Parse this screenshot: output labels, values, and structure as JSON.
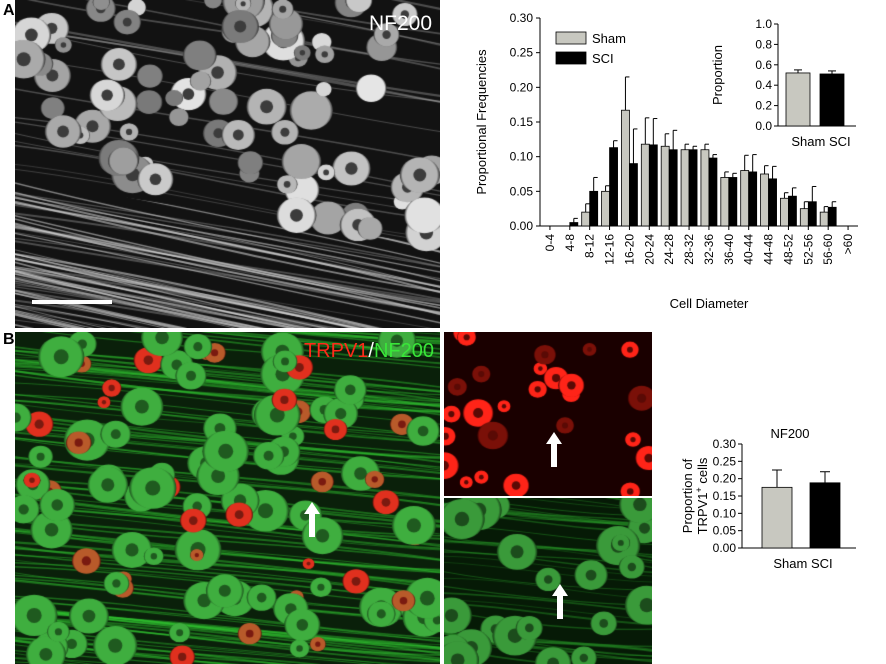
{
  "figure": {
    "panel_a_letter": "A",
    "panel_b_letter": "B",
    "micrograph_a_label": "NF200",
    "micrograph_b_label_trpv1": "TRPV1",
    "micrograph_b_label_slash": "/",
    "micrograph_b_label_nf200": "NF200",
    "colors": {
      "trpv1": "#ff2a1a",
      "nf200_green": "#39e639",
      "sham": "#c8c8c0",
      "sci": "#000000"
    }
  },
  "chart_data": [
    {
      "type": "bar",
      "id": "histogram",
      "categories": [
        "0-4",
        "4-8",
        "8-12",
        "12-16",
        "16-20",
        "20-24",
        "24-28",
        "28-32",
        "32-36",
        "36-40",
        "40-44",
        "44-48",
        "48-52",
        "52-56",
        "56-60",
        ">60"
      ],
      "series": [
        {
          "name": "Sham",
          "values": [
            0,
            0,
            0.02,
            0.05,
            0.167,
            0.118,
            0.115,
            0.11,
            0.11,
            0.07,
            0.08,
            0.075,
            0.04,
            0.025,
            0.02,
            0
          ],
          "errors": [
            0,
            0,
            0.012,
            0.008,
            0.048,
            0.038,
            0.018,
            0.008,
            0.008,
            0.008,
            0.022,
            0.012,
            0.008,
            0.01,
            0.008,
            0
          ]
        },
        {
          "name": "SCI",
          "values": [
            0,
            0.005,
            0.05,
            0.113,
            0.09,
            0.117,
            0.11,
            0.11,
            0.098,
            0.07,
            0.078,
            0.068,
            0.043,
            0.035,
            0.027,
            0
          ],
          "errors": [
            0,
            0.006,
            0.02,
            0.01,
            0.05,
            0.038,
            0.028,
            0.005,
            0.005,
            0.006,
            0.025,
            0.018,
            0.012,
            0.022,
            0.008,
            0
          ]
        }
      ],
      "xlabel": "Cell Diameter",
      "ylabel": "Proportional Frequencies",
      "ylim": [
        0,
        0.3
      ],
      "yticks": [
        "0.00",
        "0.05",
        "0.10",
        "0.15",
        "0.20",
        "0.25",
        "0.30"
      ],
      "legend": [
        "Sham",
        "SCI"
      ],
      "legend_position": "top-left"
    },
    {
      "type": "bar",
      "id": "inset",
      "categories": [
        "Sham",
        "SCI"
      ],
      "category_label": "Sham SCI",
      "values": [
        0.52,
        0.51
      ],
      "errors": [
        0.03,
        0.03
      ],
      "ylabel": "Proportion",
      "ylim": [
        0,
        1.0
      ],
      "yticks": [
        "0.0",
        "0.2",
        "0.4",
        "0.6",
        "0.8",
        "1.0"
      ]
    },
    {
      "type": "bar",
      "id": "trpv1",
      "title": "NF200",
      "categories": [
        "Sham",
        "SCI"
      ],
      "category_label": "Sham SCI",
      "values": [
        0.175,
        0.188
      ],
      "errors": [
        0.05,
        0.032
      ],
      "ylabel_line1": "Proportion of",
      "ylabel_line2_pre": "TRPV1",
      "ylabel_line2_sup": "+",
      "ylabel_line2_post": " cells",
      "ylim": [
        0,
        0.3
      ],
      "yticks": [
        "0.00",
        "0.05",
        "0.10",
        "0.15",
        "0.20",
        "0.25",
        "0.30"
      ]
    }
  ]
}
